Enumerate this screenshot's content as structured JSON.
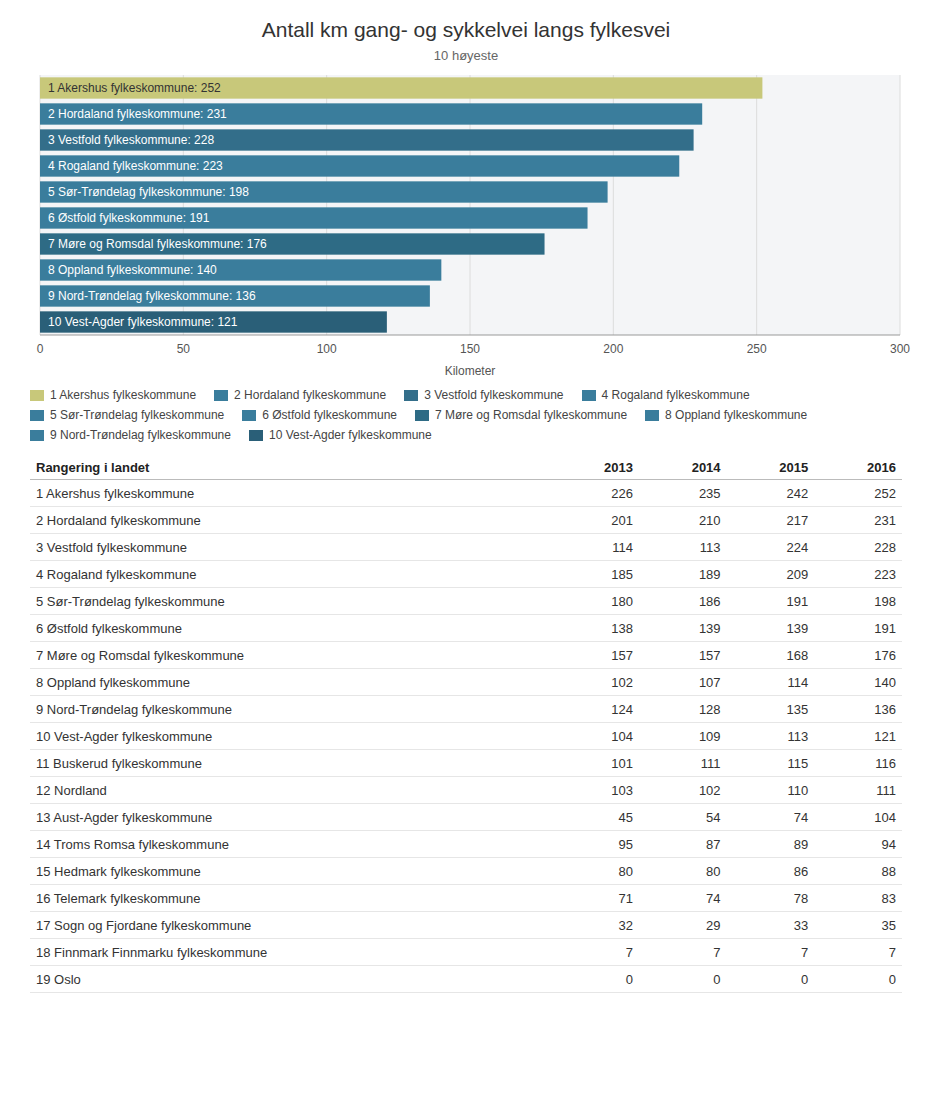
{
  "chart_data": {
    "type": "bar",
    "orientation": "horizontal",
    "title": "Antall km gang- og sykkelvei langs fylkesvei",
    "subtitle": "10 høyeste",
    "xlabel": "Kilometer",
    "categories": [
      "1 Akershus fylkeskommune",
      "2 Hordaland fylkeskommune",
      "3 Vestfold fylkeskommune",
      "4 Rogaland fylkeskommune",
      "5 Sør-Trøndelag fylkeskommune",
      "6 Østfold fylkeskommune",
      "7 Møre og Romsdal fylkeskommune",
      "8 Oppland fylkeskommune",
      "9 Nord-Trøndelag fylkeskommune",
      "10 Vest-Agder fylkeskommune"
    ],
    "values": [
      252,
      231,
      228,
      223,
      198,
      191,
      176,
      140,
      136,
      121
    ],
    "value_labels": [
      "1 Akershus fylkeskommune: 252",
      "2 Hordaland fylkeskommune: 231",
      "3 Vestfold fylkeskommune: 228",
      "4 Rogaland fylkeskommune: 223",
      "5 Sør-Trøndelag fylkeskommune: 198",
      "6 Østfold fylkeskommune: 191",
      "7 Møre og Romsdal fylkeskommune: 176",
      "8 Oppland fylkeskommune: 140",
      "9 Nord-Trøndelag fylkeskommune: 136",
      "10 Vest-Agder fylkeskommune: 121"
    ],
    "data_labels": true,
    "colors": [
      "#c8c87a",
      "#3a7d9c",
      "#336e8a",
      "#3a7d9c",
      "#3a7d9c",
      "#3a7d9c",
      "#2e6b85",
      "#3a7d9c",
      "#3a7d9c",
      "#2a5f78"
    ],
    "xlim": [
      0,
      300
    ],
    "xticks": [
      0,
      50,
      100,
      150,
      200,
      250,
      300
    ],
    "grid": true,
    "tick_labels": "x",
    "legend": "bottom"
  },
  "table": {
    "header": [
      "Rangering i landet",
      "2013",
      "2014",
      "2015",
      "2016"
    ],
    "rows": [
      [
        "1 Akershus fylkeskommune",
        "226",
        "235",
        "242",
        "252"
      ],
      [
        "2 Hordaland fylkeskommune",
        "201",
        "210",
        "217",
        "231"
      ],
      [
        "3 Vestfold fylkeskommune",
        "114",
        "113",
        "224",
        "228"
      ],
      [
        "4 Rogaland fylkeskommune",
        "185",
        "189",
        "209",
        "223"
      ],
      [
        "5 Sør-Trøndelag fylkeskommune",
        "180",
        "186",
        "191",
        "198"
      ],
      [
        "6 Østfold fylkeskommune",
        "138",
        "139",
        "139",
        "191"
      ],
      [
        "7 Møre og Romsdal fylkeskommune",
        "157",
        "157",
        "168",
        "176"
      ],
      [
        "8 Oppland fylkeskommune",
        "102",
        "107",
        "114",
        "140"
      ],
      [
        "9 Nord-Trøndelag fylkeskommune",
        "124",
        "128",
        "135",
        "136"
      ],
      [
        "10 Vest-Agder fylkeskommune",
        "104",
        "109",
        "113",
        "121"
      ],
      [
        "11 Buskerud fylkeskommune",
        "101",
        "111",
        "115",
        "116"
      ],
      [
        "12 Nordland",
        "103",
        "102",
        "110",
        "111"
      ],
      [
        "13 Aust-Agder fylkeskommune",
        "45",
        "54",
        "74",
        "104"
      ],
      [
        "14 Troms Romsa fylkeskommune",
        "95",
        "87",
        "89",
        "94"
      ],
      [
        "15 Hedmark fylkeskommune",
        "80",
        "80",
        "86",
        "88"
      ],
      [
        "16 Telemark fylkeskommune",
        "71",
        "74",
        "78",
        "83"
      ],
      [
        "17 Sogn og Fjordane fylkeskommune",
        "32",
        "29",
        "33",
        "35"
      ],
      [
        "18 Finnmark Finnmarku fylkeskommune",
        "7",
        "7",
        "7",
        "7"
      ],
      [
        "19 Oslo",
        "0",
        "0",
        "0",
        "0"
      ]
    ]
  }
}
